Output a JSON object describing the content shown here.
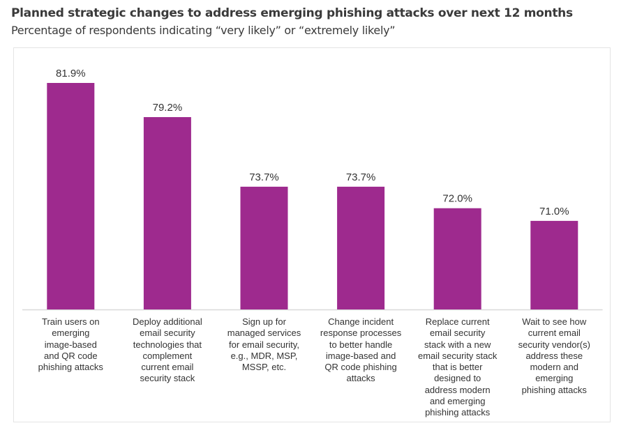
{
  "title": "Planned strategic changes to address emerging phishing attacks over next 12 months",
  "subtitle": "Percentage of respondents indicating “very likely” or “extremely likely”",
  "colors": {
    "bar": "#9e2a8e",
    "text": "#333333",
    "axis": "#d9d9d9"
  },
  "chart_data": {
    "type": "bar",
    "title": "Planned strategic changes to address emerging phishing attacks over next 12 months",
    "subtitle": "Percentage of respondents indicating “very likely” or “extremely likely”",
    "xlabel": "",
    "ylabel": "",
    "ylim": [
      64,
      84
    ],
    "grid": false,
    "legend": "none",
    "categories": [
      [
        "Train users on",
        "emerging",
        "image-based",
        "and QR code",
        "phishing attacks"
      ],
      [
        "Deploy additional",
        "email security",
        "technologies that",
        "complement",
        "current email",
        "security stack"
      ],
      [
        "Sign up for",
        "managed services",
        "for email security,",
        "e.g., MDR, MSP,",
        "MSSP, etc."
      ],
      [
        "Change incident",
        "response processes",
        "to better handle",
        "image-based and",
        "QR code phishing",
        "attacks"
      ],
      [
        "Replace current",
        "email security",
        "stack with a new",
        "email security stack",
        "that is better",
        "designed to",
        "address modern",
        "and emerging",
        "phishing attacks"
      ],
      [
        "Wait to see how",
        "current email",
        "security vendor(s)",
        "address these",
        "modern and",
        "emerging",
        "phishing attacks"
      ]
    ],
    "values": [
      81.9,
      79.2,
      73.7,
      73.7,
      72.0,
      71.0
    ],
    "data_labels": [
      "81.9%",
      "79.2%",
      "73.7%",
      "73.7%",
      "72.0%",
      "71.0%"
    ]
  }
}
